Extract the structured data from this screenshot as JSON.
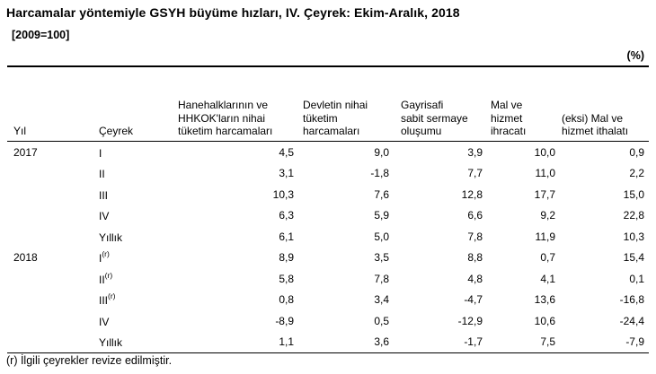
{
  "header": {
    "title": "Harcamalar yöntemiyle GSYH büyüme hızları, IV. Çeyrek: Ekim-Aralık, 2018",
    "subtitle": "[2009=100]",
    "unit_label": "(%)"
  },
  "table": {
    "columns": [
      "Yıl",
      "Çeyrek",
      "Hanehalklarının ve\nHHKOK'ların nihai\ntüketim harcamaları",
      "Devletin nihai\ntüketim\nharcamaları",
      "Gayrisafi\nsabit sermaye\noluşumu",
      "Mal ve\nhizmet\nihracatı",
      "(eksi) Mal ve\nhizmet ithalatı"
    ],
    "rows": [
      {
        "year": "2017",
        "quarter": "I",
        "revised": "",
        "values": [
          "4,5",
          "9,0",
          "3,9",
          "10,0",
          "0,9"
        ]
      },
      {
        "year": "",
        "quarter": "II",
        "revised": "",
        "values": [
          "3,1",
          "-1,8",
          "7,7",
          "11,0",
          "2,2"
        ]
      },
      {
        "year": "",
        "quarter": "III",
        "revised": "",
        "values": [
          "10,3",
          "7,6",
          "12,8",
          "17,7",
          "15,0"
        ]
      },
      {
        "year": "",
        "quarter": "IV",
        "revised": "",
        "values": [
          "6,3",
          "5,9",
          "6,6",
          "9,2",
          "22,8"
        ]
      },
      {
        "year": "",
        "quarter": "Yıllık",
        "revised": "",
        "values": [
          "6,1",
          "5,0",
          "7,8",
          "11,9",
          "10,3"
        ]
      },
      {
        "year": "2018",
        "quarter": "I",
        "revised": "(r)",
        "values": [
          "8,9",
          "3,5",
          "8,8",
          "0,7",
          "15,4"
        ]
      },
      {
        "year": "",
        "quarter": "II",
        "revised": "(r)",
        "values": [
          "5,8",
          "7,8",
          "4,8",
          "4,1",
          "0,1"
        ]
      },
      {
        "year": "",
        "quarter": "III",
        "revised": "(r)",
        "values": [
          "0,8",
          "3,4",
          "-4,7",
          "13,6",
          "-16,8"
        ]
      },
      {
        "year": "",
        "quarter": "IV",
        "revised": "",
        "values": [
          "-8,9",
          "0,5",
          "-12,9",
          "10,6",
          "-24,4"
        ]
      },
      {
        "year": "",
        "quarter": "Yıllık",
        "revised": "",
        "values": [
          "1,1",
          "3,6",
          "-1,7",
          "7,5",
          "-7,9"
        ]
      }
    ]
  },
  "footnote": "(r) İlgili çeyrekler revize edilmiştir."
}
